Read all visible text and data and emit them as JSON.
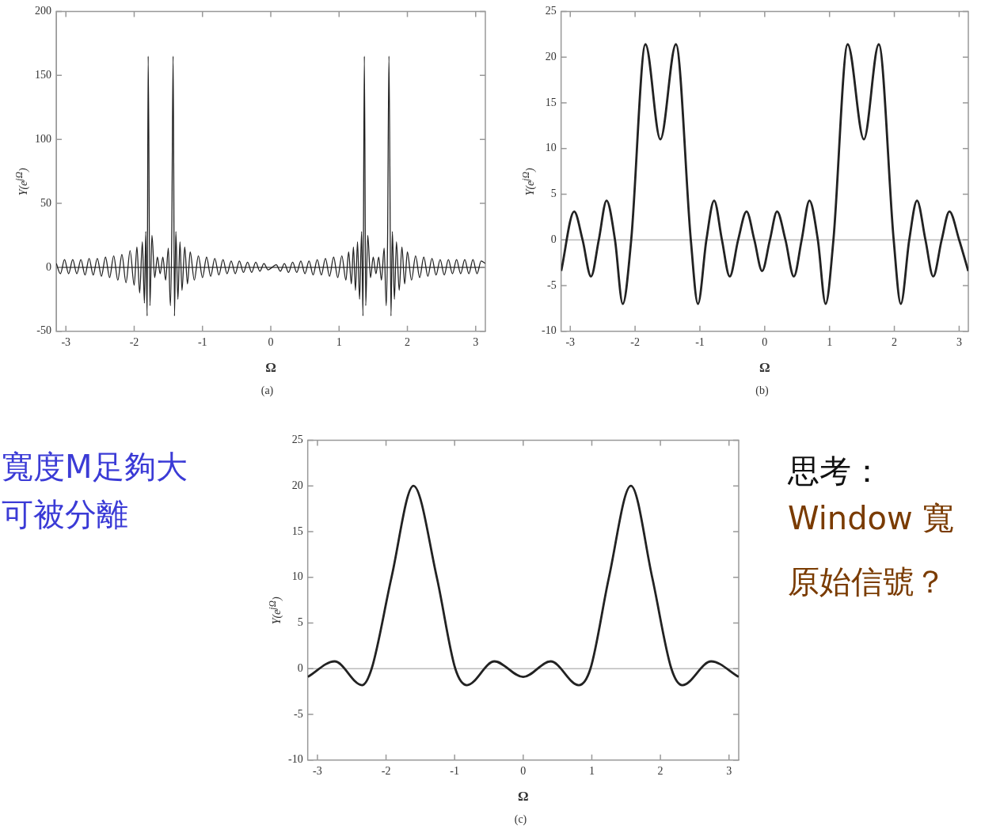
{
  "chart_data": [
    {
      "type": "line",
      "xlabel": "Ω",
      "ylabel": "Y(e$^{jΩ}$)",
      "annotations": [
        "(a)"
      ],
      "color": "#222222",
      "marker": "none",
      "grid": false,
      "xlim": [
        -3.1416,
        3.1416
      ],
      "xticks": [
        -3,
        -2,
        -1,
        0,
        1,
        2,
        3
      ],
      "ylim": [
        -50,
        200
      ],
      "yticks": [
        -50,
        0,
        50,
        100,
        150,
        200
      ],
      "ref_lines": [
        {
          "axis": "y",
          "value": 0,
          "color": "#555555"
        }
      ],
      "x": [
        -3.14,
        -3.08,
        -3.02,
        -2.96,
        -2.9,
        -2.84,
        -2.78,
        -2.72,
        -2.66,
        -2.6,
        -2.54,
        -2.48,
        -2.42,
        -2.36,
        -2.3,
        -2.24,
        -2.18,
        -2.12,
        -2.06,
        -2.0,
        -1.96,
        -1.92,
        -1.88,
        -1.85,
        -1.83,
        -1.81,
        -1.795,
        -1.77,
        -1.74,
        -1.7,
        -1.66,
        -1.62,
        -1.58,
        -1.54,
        -1.5,
        -1.47,
        -1.45,
        -1.43,
        -1.41,
        -1.39,
        -1.36,
        -1.33,
        -1.3,
        -1.26,
        -1.22,
        -1.18,
        -1.12,
        -1.06,
        -1.0,
        -0.94,
        -0.88,
        -0.82,
        -0.76,
        -0.7,
        -0.64,
        -0.58,
        -0.52,
        -0.46,
        -0.4,
        -0.34,
        -0.28,
        -0.22,
        -0.16,
        -0.1,
        -0.04,
        0.02,
        0.08,
        0.14,
        0.2,
        0.26,
        0.32,
        0.38,
        0.44,
        0.5,
        0.56,
        0.62,
        0.68,
        0.74,
        0.8,
        0.86,
        0.92,
        0.98,
        1.04,
        1.1,
        1.14,
        1.18,
        1.21,
        1.24,
        1.27,
        1.3,
        1.33,
        1.35,
        1.37,
        1.39,
        1.42,
        1.46,
        1.5,
        1.54,
        1.58,
        1.62,
        1.66,
        1.69,
        1.71,
        1.73,
        1.76,
        1.78,
        1.81,
        1.84,
        1.88,
        1.92,
        1.96,
        2.0,
        2.06,
        2.12,
        2.18,
        2.24,
        2.3,
        2.36,
        2.42,
        2.48,
        2.54,
        2.6,
        2.66,
        2.72,
        2.78,
        2.84,
        2.9,
        2.96,
        3.02,
        3.08,
        3.14
      ],
      "values": [
        3,
        -5,
        6,
        -5,
        6,
        -5,
        6,
        -6,
        7,
        -6,
        7,
        -7,
        8,
        -8,
        9,
        -10,
        10,
        -12,
        13,
        -14,
        16,
        -20,
        20,
        -28,
        28,
        -38,
        165,
        -30,
        25,
        -8,
        8,
        -5,
        8,
        -10,
        15,
        -30,
        25,
        165,
        -38,
        28,
        -25,
        20,
        -18,
        16,
        -13,
        12,
        -10,
        9,
        -8,
        8,
        -7,
        7,
        -6,
        6,
        -5,
        5,
        -5,
        5,
        -4,
        4,
        -4,
        4,
        -3,
        3,
        -2,
        0,
        2,
        -3,
        3,
        -4,
        4,
        -4,
        5,
        -5,
        5,
        -6,
        6,
        -6,
        7,
        -7,
        8,
        -8,
        9,
        -10,
        12,
        -13,
        16,
        -18,
        20,
        -25,
        28,
        -38,
        165,
        -30,
        25,
        -8,
        8,
        -5,
        8,
        -10,
        15,
        -30,
        20,
        165,
        -38,
        28,
        -25,
        20,
        -18,
        16,
        -13,
        12,
        -10,
        9,
        -8,
        8,
        -7,
        7,
        -6,
        6,
        -6,
        6,
        -5,
        6,
        -5,
        6,
        -5,
        6,
        -5,
        5,
        3
      ]
    },
    {
      "type": "line",
      "xlabel": "Ω",
      "ylabel": "Y(e$^{jΩ}$)",
      "annotations": [
        "(b)"
      ],
      "color": "#222222",
      "marker": "none",
      "grid": false,
      "xlim": [
        -3.1416,
        3.1416
      ],
      "xticks": [
        -3,
        -2,
        -1,
        0,
        1,
        2,
        3
      ],
      "ylim": [
        -10,
        25
      ],
      "yticks": [
        -10,
        -5,
        0,
        5,
        10,
        15,
        20,
        25
      ],
      "ref_lines": [
        {
          "axis": "y",
          "value": 0,
          "color": "#bbbbbb"
        }
      ],
      "x": [
        -3.14,
        -2.94,
        -2.81,
        -2.68,
        -2.56,
        -2.44,
        -2.31,
        -2.19,
        -2.06,
        -1.84,
        -1.61,
        -1.37,
        -1.14,
        -1.03,
        -0.9,
        -0.78,
        -0.66,
        -0.54,
        -0.41,
        -0.28,
        -0.16,
        -0.04,
        0.08,
        0.19,
        0.32,
        0.45,
        0.57,
        0.69,
        0.82,
        0.94,
        1.06,
        1.28,
        1.53,
        1.76,
        1.99,
        2.1,
        2.23,
        2.35,
        2.48,
        2.6,
        2.73,
        2.85,
        3.0,
        3.14
      ],
      "values": [
        -3.4,
        3.1,
        0,
        -4,
        0,
        4.3,
        0,
        -7,
        0,
        21.4,
        11,
        21.4,
        0,
        -7,
        0,
        4.3,
        0,
        -4,
        0,
        3.1,
        0,
        -3.4,
        0,
        3.1,
        0,
        -4,
        0,
        4.3,
        0,
        -7,
        0,
        21.4,
        11,
        21.4,
        0,
        -7,
        0,
        4.3,
        0,
        -4,
        0,
        3.1,
        0,
        -3.4
      ]
    },
    {
      "type": "line",
      "xlabel": "Ω",
      "ylabel": "Y(e$^{jΩ}$)",
      "annotations": [
        "(c)"
      ],
      "color": "#222222",
      "marker": "none",
      "grid": false,
      "xlim": [
        -3.1416,
        3.1416
      ],
      "xticks": [
        -3,
        -2,
        -1,
        0,
        1,
        2,
        3
      ],
      "ylim": [
        -10,
        25
      ],
      "yticks": [
        -10,
        -5,
        0,
        5,
        10,
        15,
        20,
        25
      ],
      "ref_lines": [
        {
          "axis": "y",
          "value": 0,
          "color": "#bbbbbb"
        }
      ],
      "x": [
        -3.14,
        -2.75,
        -2.35,
        -2.21,
        -1.92,
        -1.6,
        -1.26,
        -0.99,
        -0.82,
        -0.42,
        0,
        0.4,
        0.81,
        0.98,
        1.25,
        1.57,
        1.88,
        2.16,
        2.32,
        2.74,
        3.14
      ],
      "values": [
        -0.9,
        0.8,
        -1.8,
        0,
        10,
        20,
        10,
        0,
        -1.8,
        0.8,
        -0.9,
        0.8,
        -1.8,
        0,
        10,
        20,
        10,
        0,
        -1.8,
        0.8,
        -0.9
      ]
    },
    {
      "type": "other",
      "annotations": [
        "寬度M足夠大",
        "可被分離"
      ]
    },
    {
      "type": "other",
      "annotations": [
        "思考：",
        "Window 寬",
        "原始信號？"
      ]
    }
  ]
}
